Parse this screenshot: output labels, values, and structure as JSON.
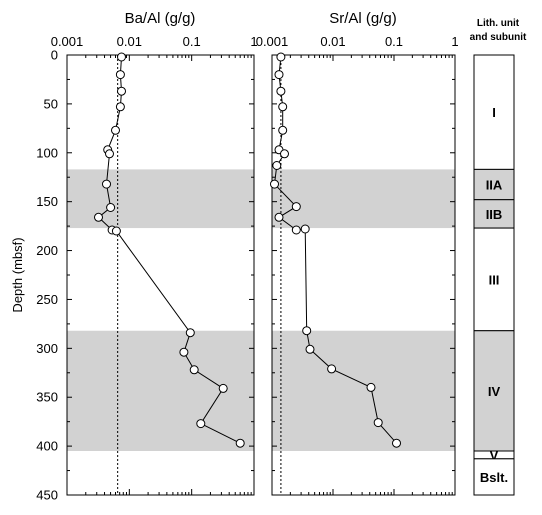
{
  "chart_data": [
    {
      "type": "line",
      "title": "Ba/Al (g/g)",
      "xlabel": "Ba/Al (g/g)",
      "ylabel": "Depth (mbsf)",
      "xscale": "log",
      "xlim": [
        0.001,
        1
      ],
      "ylim": [
        450,
        0
      ],
      "xticks": [
        "0.001",
        "0.01",
        "0.1",
        "1"
      ],
      "yticks": [
        "0",
        "50",
        "100",
        "150",
        "200",
        "250",
        "300",
        "350",
        "400",
        "450"
      ],
      "reference_line_x": 0.0065,
      "points": [
        {
          "x": 0.0075,
          "y": 2
        },
        {
          "x": 0.0072,
          "y": 20
        },
        {
          "x": 0.0075,
          "y": 37
        },
        {
          "x": 0.0072,
          "y": 53
        },
        {
          "x": 0.006,
          "y": 77
        },
        {
          "x": 0.0045,
          "y": 97
        },
        {
          "x": 0.0048,
          "y": 101
        },
        {
          "x": 0.0043,
          "y": 132
        },
        {
          "x": 0.005,
          "y": 156
        },
        {
          "x": 0.0032,
          "y": 166
        },
        {
          "x": 0.0053,
          "y": 179
        },
        {
          "x": 0.0062,
          "y": 180
        },
        {
          "x": 0.095,
          "y": 284
        },
        {
          "x": 0.075,
          "y": 304
        },
        {
          "x": 0.11,
          "y": 322
        },
        {
          "x": 0.32,
          "y": 341
        },
        {
          "x": 0.14,
          "y": 377
        },
        {
          "x": 0.6,
          "y": 397
        }
      ]
    },
    {
      "type": "line",
      "title": "Sr/Al (g/g)",
      "xlabel": "Sr/Al (g/g)",
      "xscale": "log",
      "xlim": [
        0.001,
        1
      ],
      "ylim": [
        450,
        0
      ],
      "xticks": [
        "0.001",
        "0.01",
        "0.1",
        "1"
      ],
      "reference_line_x": 0.0014,
      "points": [
        {
          "x": 0.0014,
          "y": 2
        },
        {
          "x": 0.0013,
          "y": 20
        },
        {
          "x": 0.0014,
          "y": 37
        },
        {
          "x": 0.0015,
          "y": 53
        },
        {
          "x": 0.0015,
          "y": 77
        },
        {
          "x": 0.0013,
          "y": 97
        },
        {
          "x": 0.0016,
          "y": 101
        },
        {
          "x": 0.0012,
          "y": 113
        },
        {
          "x": 0.0011,
          "y": 132
        },
        {
          "x": 0.0025,
          "y": 155
        },
        {
          "x": 0.0013,
          "y": 166
        },
        {
          "x": 0.0025,
          "y": 179
        },
        {
          "x": 0.0035,
          "y": 178
        },
        {
          "x": 0.0037,
          "y": 282
        },
        {
          "x": 0.0042,
          "y": 301
        },
        {
          "x": 0.0095,
          "y": 321
        },
        {
          "x": 0.042,
          "y": 340
        },
        {
          "x": 0.055,
          "y": 376
        },
        {
          "x": 0.11,
          "y": 397
        }
      ]
    }
  ],
  "shaded_depth_intervals": [
    {
      "top": 117,
      "bottom": 177
    },
    {
      "top": 282,
      "bottom": 405
    }
  ],
  "lithology": {
    "header_line1": "Lith. unit",
    "header_line2": "and subunit",
    "units": [
      {
        "label": "I",
        "top": 0,
        "bottom": 117,
        "shaded": false
      },
      {
        "label": "IIA",
        "top": 117,
        "bottom": 148,
        "shaded": true
      },
      {
        "label": "IIB",
        "top": 148,
        "bottom": 177,
        "shaded": true
      },
      {
        "label": "III",
        "top": 177,
        "bottom": 282,
        "shaded": false
      },
      {
        "label": "IV",
        "top": 282,
        "bottom": 405,
        "shaded": true
      },
      {
        "label": "V",
        "top": 405,
        "bottom": 413,
        "shaded": false
      },
      {
        "label": "Bslt.",
        "top": 413,
        "bottom": 450,
        "shaded": false
      }
    ]
  },
  "colors": {
    "shade": "#d2d2d2",
    "line": "#000000",
    "marker_fill": "#ffffff"
  }
}
